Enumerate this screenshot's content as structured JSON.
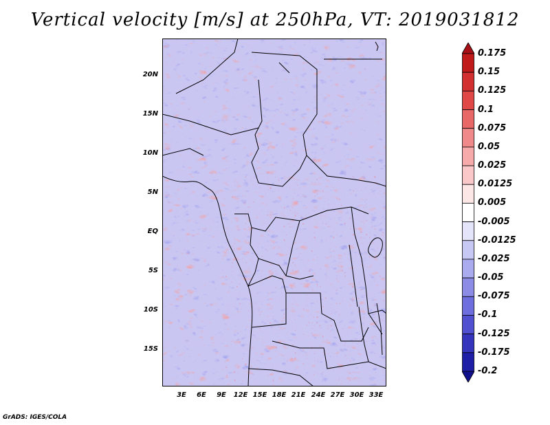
{
  "title": "Vertical velocity [m/s] at 250hPa, VT: 2019031812",
  "credit": "GrADS: IGES/COLA",
  "map": {
    "lat_ticks": [
      "20N",
      "15N",
      "10N",
      "5N",
      "EQ",
      "5S",
      "10S",
      "15S"
    ],
    "lon_ticks": [
      "3E",
      "6E",
      "9E",
      "12E",
      "15E",
      "18E",
      "21E",
      "24E",
      "27E",
      "30E",
      "33E"
    ],
    "field": "vertical velocity",
    "level": "250hPa",
    "valid_time": "2019031812",
    "region": "Central Africa"
  },
  "colorbar": {
    "labels": [
      "0.175",
      "0.15",
      "0.125",
      "0.1",
      "0.075",
      "0.05",
      "0.025",
      "0.0125",
      "0.005",
      "-0.005",
      "-0.0125",
      "-0.025",
      "-0.05",
      "-0.075",
      "-0.1",
      "-0.125",
      "-0.175",
      "-0.2"
    ],
    "colors": [
      "#a50f15",
      "#c01a1a",
      "#d23030",
      "#e04848",
      "#e86868",
      "#f08a8a",
      "#f6aaaa",
      "#fac8c8",
      "#fde6e6",
      "#ffffff",
      "#e4e4fb",
      "#c8c8f5",
      "#aaaaef",
      "#8c8ce6",
      "#6e6ede",
      "#5050d0",
      "#3434bc",
      "#1e1ea6",
      "#10108c"
    ]
  }
}
